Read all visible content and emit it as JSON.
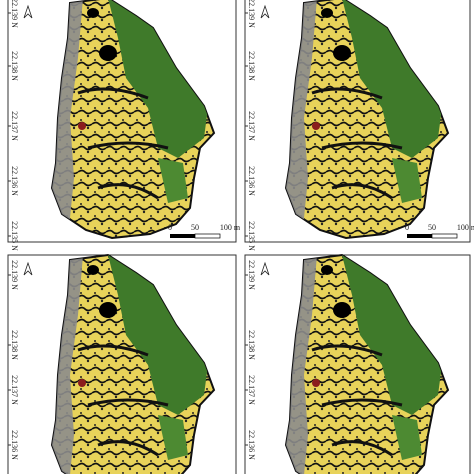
{
  "panels": [
    {
      "lat_labels": [
        "22.139 N",
        "22.138 N",
        "22.137 N",
        "22.136 N",
        "22.135 N"
      ],
      "scale_labels": [
        "0",
        "50",
        "100 m"
      ]
    },
    {
      "lat_labels": [
        "22.139 N",
        "22.138 N",
        "22.137 N",
        "22.136 N",
        "22.135 N"
      ],
      "scale_labels": [
        "0",
        "50",
        "100 m"
      ]
    },
    {
      "lat_labels": [
        "22.139 N",
        "22.138 N",
        "22.137 N",
        "22.136 N"
      ]
    },
    {
      "lat_labels": [
        "22.139 N",
        "22.138 N",
        "22.137 N",
        "22.136 N"
      ]
    }
  ]
}
